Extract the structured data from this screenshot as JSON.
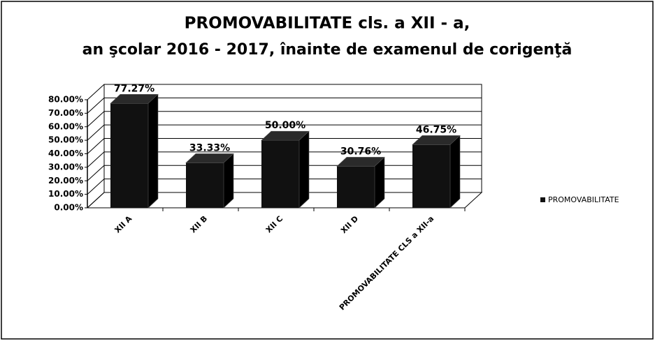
{
  "chart_data": {
    "type": "bar3d",
    "title": "PROMOVABILITATE cls. a XII - a,",
    "subtitle": "an şcolar 2016 - 2017, înainte de examenul de corigenţă",
    "categories": [
      "XII A",
      "XII B",
      "XII C",
      "XII D",
      "PROMOVABILITATE CLS a XII-a"
    ],
    "series": [
      {
        "name": "PROMOVABILITATE",
        "color": "#111111",
        "values": [
          77.27,
          33.33,
          50.0,
          30.76,
          46.75
        ],
        "value_labels": [
          "77.27%",
          "33.33%",
          "50.00%",
          "30.76%",
          "46.75%"
        ]
      }
    ],
    "ylim": [
      0,
      80
    ],
    "yticks": [
      {
        "value": 0,
        "label": "0.00%"
      },
      {
        "value": 10,
        "label": "10.00%"
      },
      {
        "value": 20,
        "label": "20.00%"
      },
      {
        "value": 30,
        "label": "30.00%"
      },
      {
        "value": 40,
        "label": "40.00%"
      },
      {
        "value": 50,
        "label": "50.00%"
      },
      {
        "value": 60,
        "label": "60.00%"
      },
      {
        "value": 70,
        "label": "70.00%"
      },
      {
        "value": 80,
        "label": "80.00%"
      }
    ],
    "grid": true,
    "legend": "right"
  }
}
